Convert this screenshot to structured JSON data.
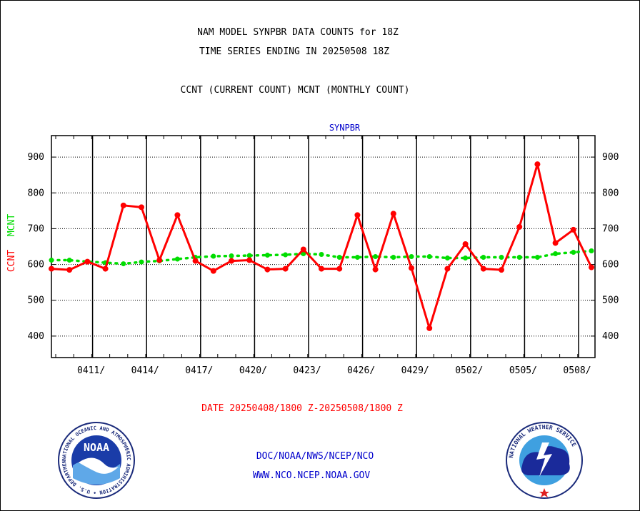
{
  "header": {
    "title_line1": "NAM MODEL SYNPBR DATA COUNTS for 18Z",
    "title_line2": "TIME SERIES ENDING IN 20250508 18Z",
    "subtitle": "CCNT (CURRENT COUNT) MCNT (MONTHLY COUNT)"
  },
  "chart_data": {
    "type": "line",
    "title": "SYNPBR",
    "ylabel_ccnt": "CCNT",
    "ylabel_mcnt": "MCNT",
    "xlabel": "DATE 20250408/1800 Z-20250508/1800 Z",
    "ylim": [
      340,
      960
    ],
    "yticks": [
      400,
      500,
      600,
      700,
      800,
      900
    ],
    "x_start": "20250408",
    "x_end": "20250508",
    "xticks": [
      "0411/",
      "0414/",
      "0417/",
      "0420/",
      "0423/",
      "0426/",
      "0429/",
      "0502/",
      "0505/",
      "0508/"
    ],
    "grid": true,
    "series": [
      {
        "name": "CCNT",
        "color": "#ff0000",
        "values": [
          588,
          585,
          608,
          588,
          765,
          760,
          612,
          738,
          610,
          582,
          610,
          612,
          586,
          588,
          642,
          588,
          588,
          738,
          586,
          742,
          590,
          422,
          588,
          657,
          588,
          585,
          705,
          880,
          660,
          697,
          592
        ]
      },
      {
        "name": "MCNT",
        "color": "#00dd00",
        "values": [
          612,
          612,
          608,
          605,
          602,
          607,
          610,
          615,
          620,
          623,
          624,
          625,
          626,
          627,
          630,
          628,
          620,
          620,
          622,
          620,
          622,
          622,
          618,
          618,
          620,
          620,
          620,
          620,
          630,
          634,
          638
        ]
      }
    ]
  },
  "footer": {
    "line1": "DOC/NOAA/NWS/NCEP/NCO",
    "line2": "WWW.NCO.NCEP.NOAA.GOV"
  },
  "logos": {
    "noaa_text": "NOAA",
    "noaa_ring": "NATIONAL OCEANIC AND ATMOSPHERIC ADMINISTRATION • U.S. DEPARTMENT OF COMMERCE",
    "nws_ring": "NATIONAL WEATHER SERVICE"
  },
  "colors": {
    "ccnt": "#ff0000",
    "mcnt": "#00dd00",
    "title_blue": "#0000cc",
    "date_red": "#ff0000",
    "footer_blue": "#0000cc"
  }
}
